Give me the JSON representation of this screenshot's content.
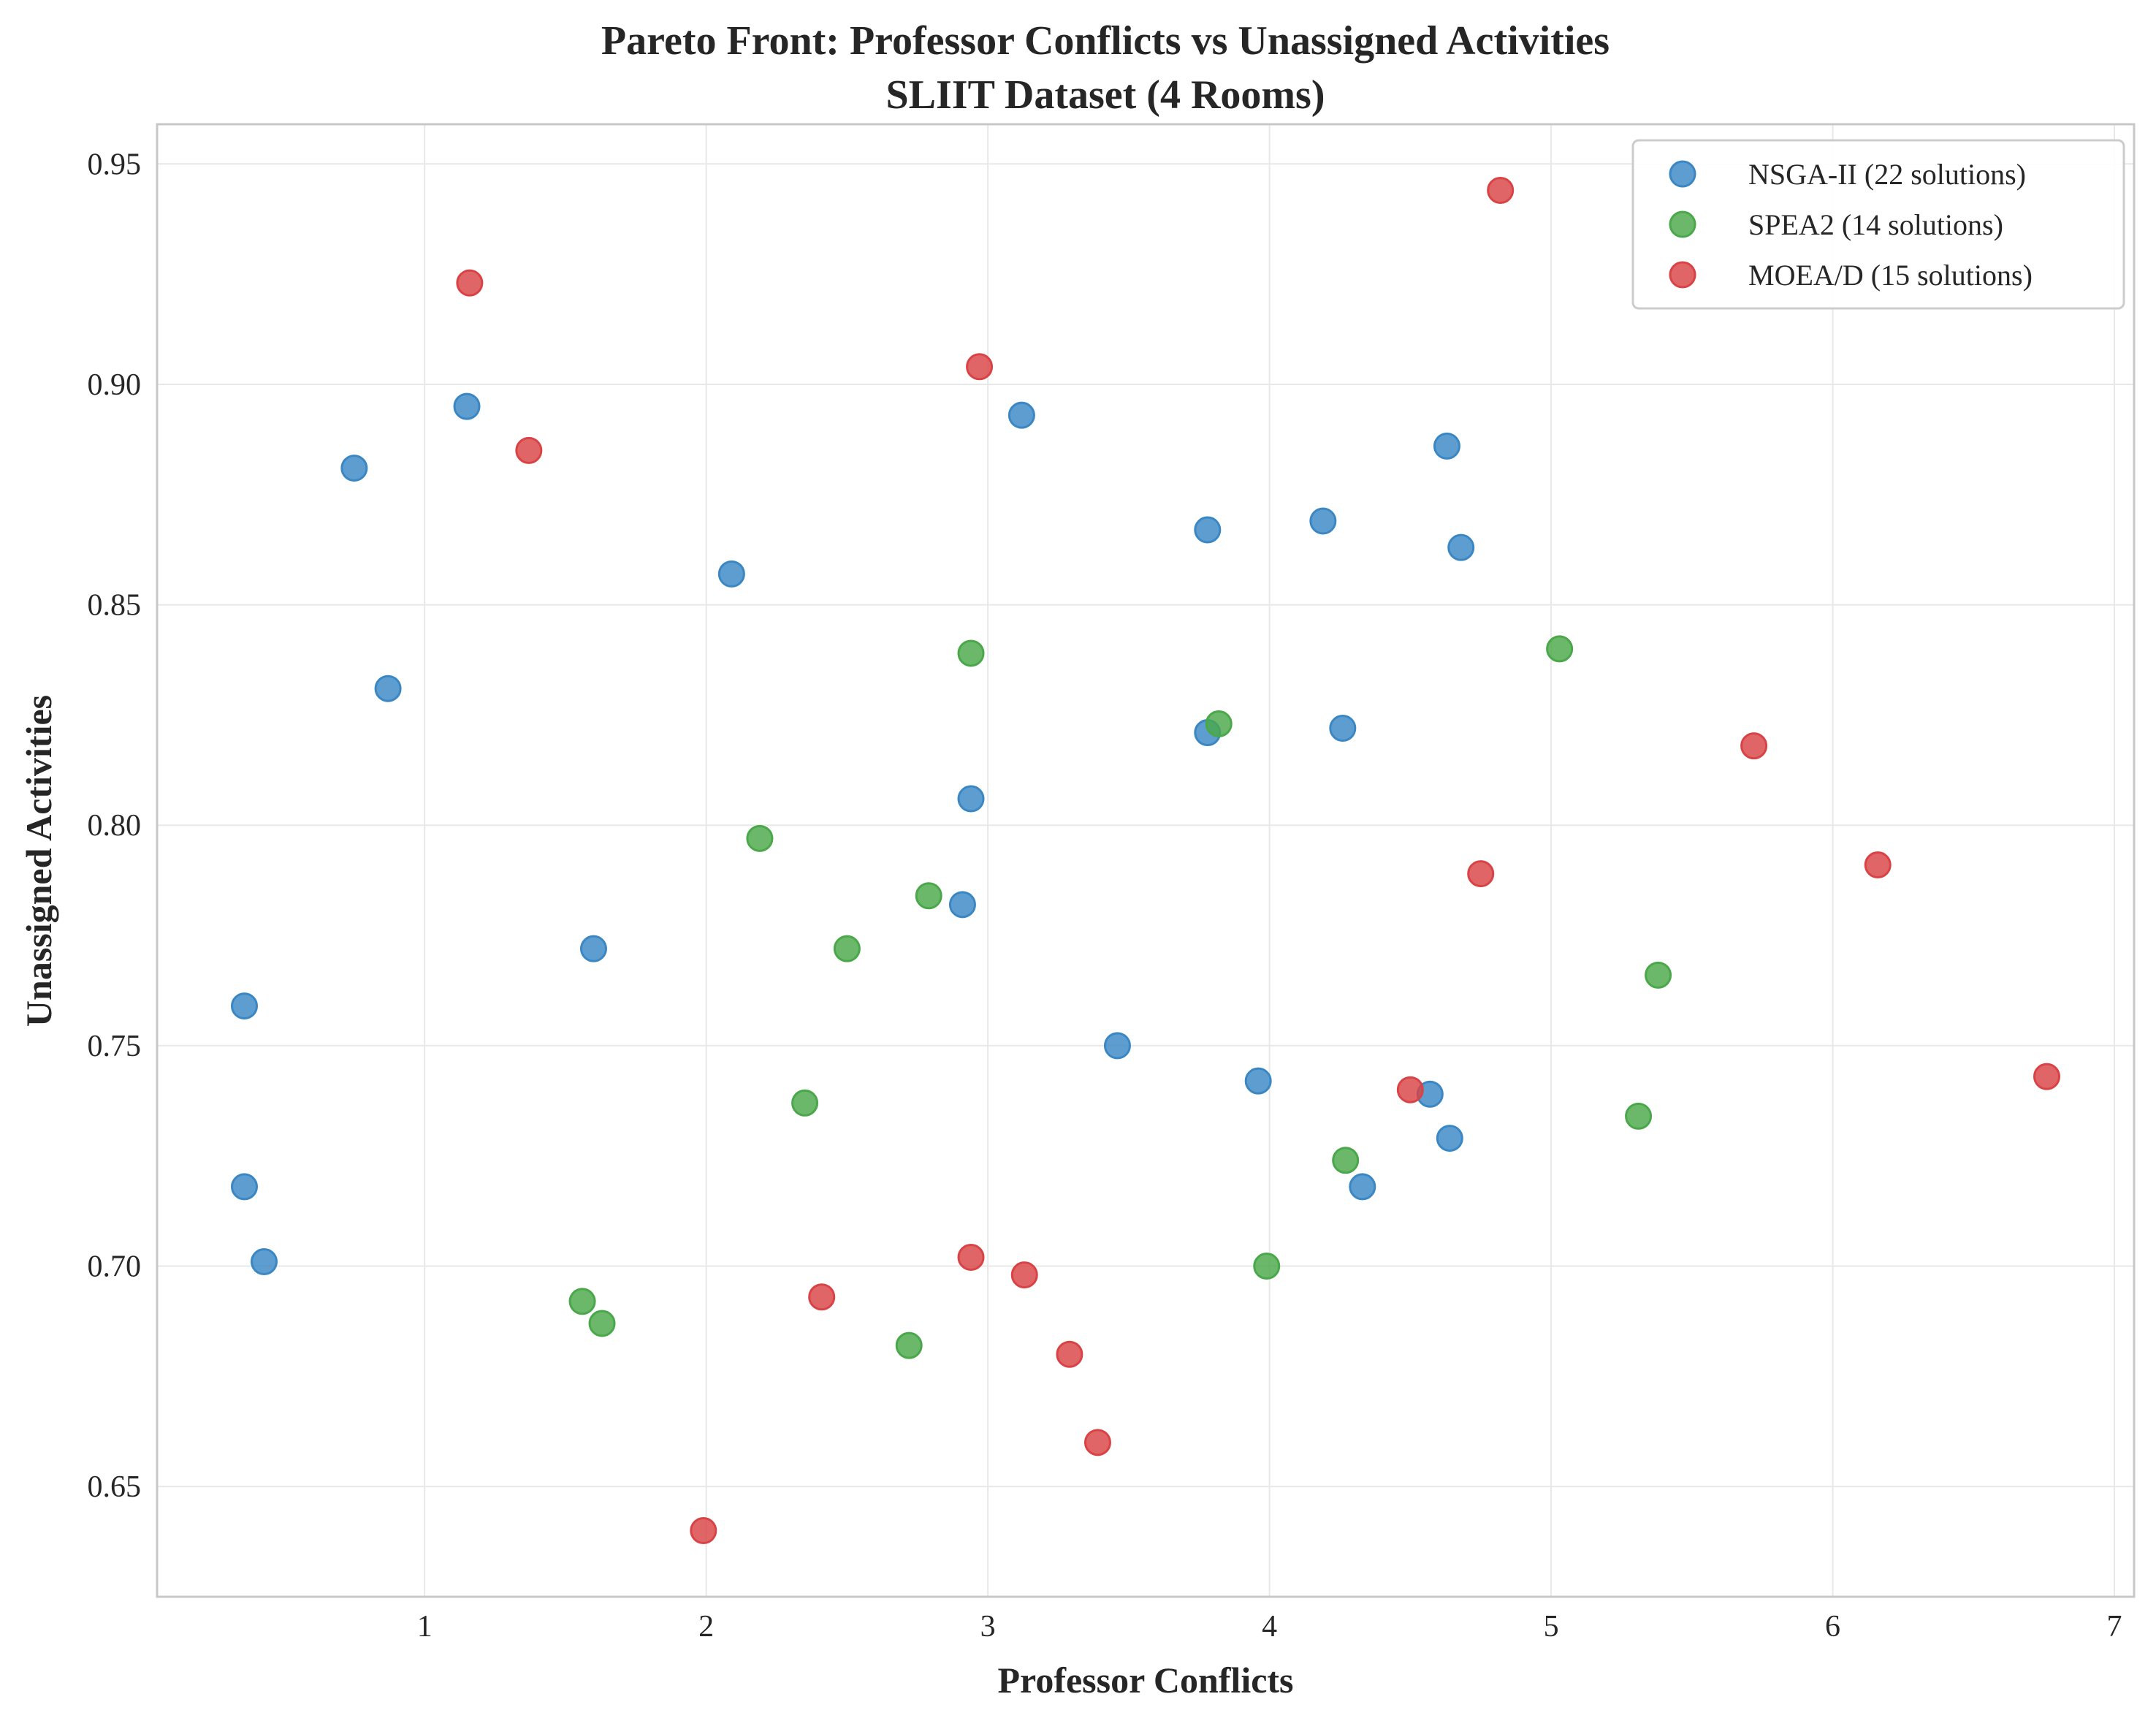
{
  "chart_data": {
    "type": "scatter",
    "title": "Pareto Front: Professor Conflicts vs Unassigned Activities",
    "subtitle": "SLIIT Dataset (4 Rooms)",
    "xlabel": "Professor Conflicts",
    "ylabel": "Unassigned Activities",
    "xlim": [
      0.05,
      7.07
    ],
    "ylim": [
      0.625,
      0.959
    ],
    "xticks": [
      1,
      2,
      3,
      4,
      5,
      6,
      7
    ],
    "yticks": [
      0.65,
      0.7,
      0.75,
      0.8,
      0.85,
      0.9,
      0.95
    ],
    "xtick_labels": [
      "1",
      "2",
      "3",
      "4",
      "5",
      "6",
      "7"
    ],
    "ytick_labels": [
      "0.65",
      "0.70",
      "0.75",
      "0.80",
      "0.85",
      "0.90",
      "0.95"
    ],
    "grid": true,
    "legend_position": "top-right",
    "series": [
      {
        "name": "NSGA-II (22 solutions)",
        "color": "#3a87c4",
        "points": [
          {
            "x": 0.75,
            "y": 0.881
          },
          {
            "x": 1.15,
            "y": 0.895
          },
          {
            "x": 0.87,
            "y": 0.831
          },
          {
            "x": 2.09,
            "y": 0.857
          },
          {
            "x": 3.12,
            "y": 0.893
          },
          {
            "x": 3.78,
            "y": 0.867
          },
          {
            "x": 4.19,
            "y": 0.869
          },
          {
            "x": 4.63,
            "y": 0.886
          },
          {
            "x": 4.68,
            "y": 0.863
          },
          {
            "x": 3.78,
            "y": 0.821
          },
          {
            "x": 4.26,
            "y": 0.822
          },
          {
            "x": 2.94,
            "y": 0.806
          },
          {
            "x": 2.91,
            "y": 0.782
          },
          {
            "x": 1.6,
            "y": 0.772
          },
          {
            "x": 0.36,
            "y": 0.759
          },
          {
            "x": 3.46,
            "y": 0.75
          },
          {
            "x": 3.96,
            "y": 0.742
          },
          {
            "x": 4.57,
            "y": 0.739
          },
          {
            "x": 4.64,
            "y": 0.729
          },
          {
            "x": 4.33,
            "y": 0.718
          },
          {
            "x": 0.36,
            "y": 0.718
          },
          {
            "x": 0.43,
            "y": 0.701
          }
        ]
      },
      {
        "name": "SPEA2 (14 solutions)",
        "color": "#4aa84a",
        "points": [
          {
            "x": 2.94,
            "y": 0.839
          },
          {
            "x": 5.03,
            "y": 0.84
          },
          {
            "x": 3.82,
            "y": 0.823
          },
          {
            "x": 2.19,
            "y": 0.797
          },
          {
            "x": 2.79,
            "y": 0.784
          },
          {
            "x": 2.5,
            "y": 0.772
          },
          {
            "x": 5.38,
            "y": 0.766
          },
          {
            "x": 2.35,
            "y": 0.737
          },
          {
            "x": 5.31,
            "y": 0.734
          },
          {
            "x": 4.27,
            "y": 0.724
          },
          {
            "x": 3.99,
            "y": 0.7
          },
          {
            "x": 1.56,
            "y": 0.692
          },
          {
            "x": 1.63,
            "y": 0.687
          },
          {
            "x": 2.72,
            "y": 0.682
          }
        ]
      },
      {
        "name": "MOEA/D (15 solutions)",
        "color": "#d94345",
        "points": [
          {
            "x": 4.82,
            "y": 0.944
          },
          {
            "x": 1.16,
            "y": 0.923
          },
          {
            "x": 2.97,
            "y": 0.904
          },
          {
            "x": 1.37,
            "y": 0.885
          },
          {
            "x": 5.72,
            "y": 0.818
          },
          {
            "x": 6.16,
            "y": 0.791
          },
          {
            "x": 4.75,
            "y": 0.789
          },
          {
            "x": 6.76,
            "y": 0.743
          },
          {
            "x": 4.5,
            "y": 0.74
          },
          {
            "x": 2.94,
            "y": 0.702
          },
          {
            "x": 3.13,
            "y": 0.698
          },
          {
            "x": 2.41,
            "y": 0.693
          },
          {
            "x": 3.29,
            "y": 0.68
          },
          {
            "x": 3.39,
            "y": 0.66
          },
          {
            "x": 1.99,
            "y": 0.64
          }
        ]
      }
    ]
  }
}
